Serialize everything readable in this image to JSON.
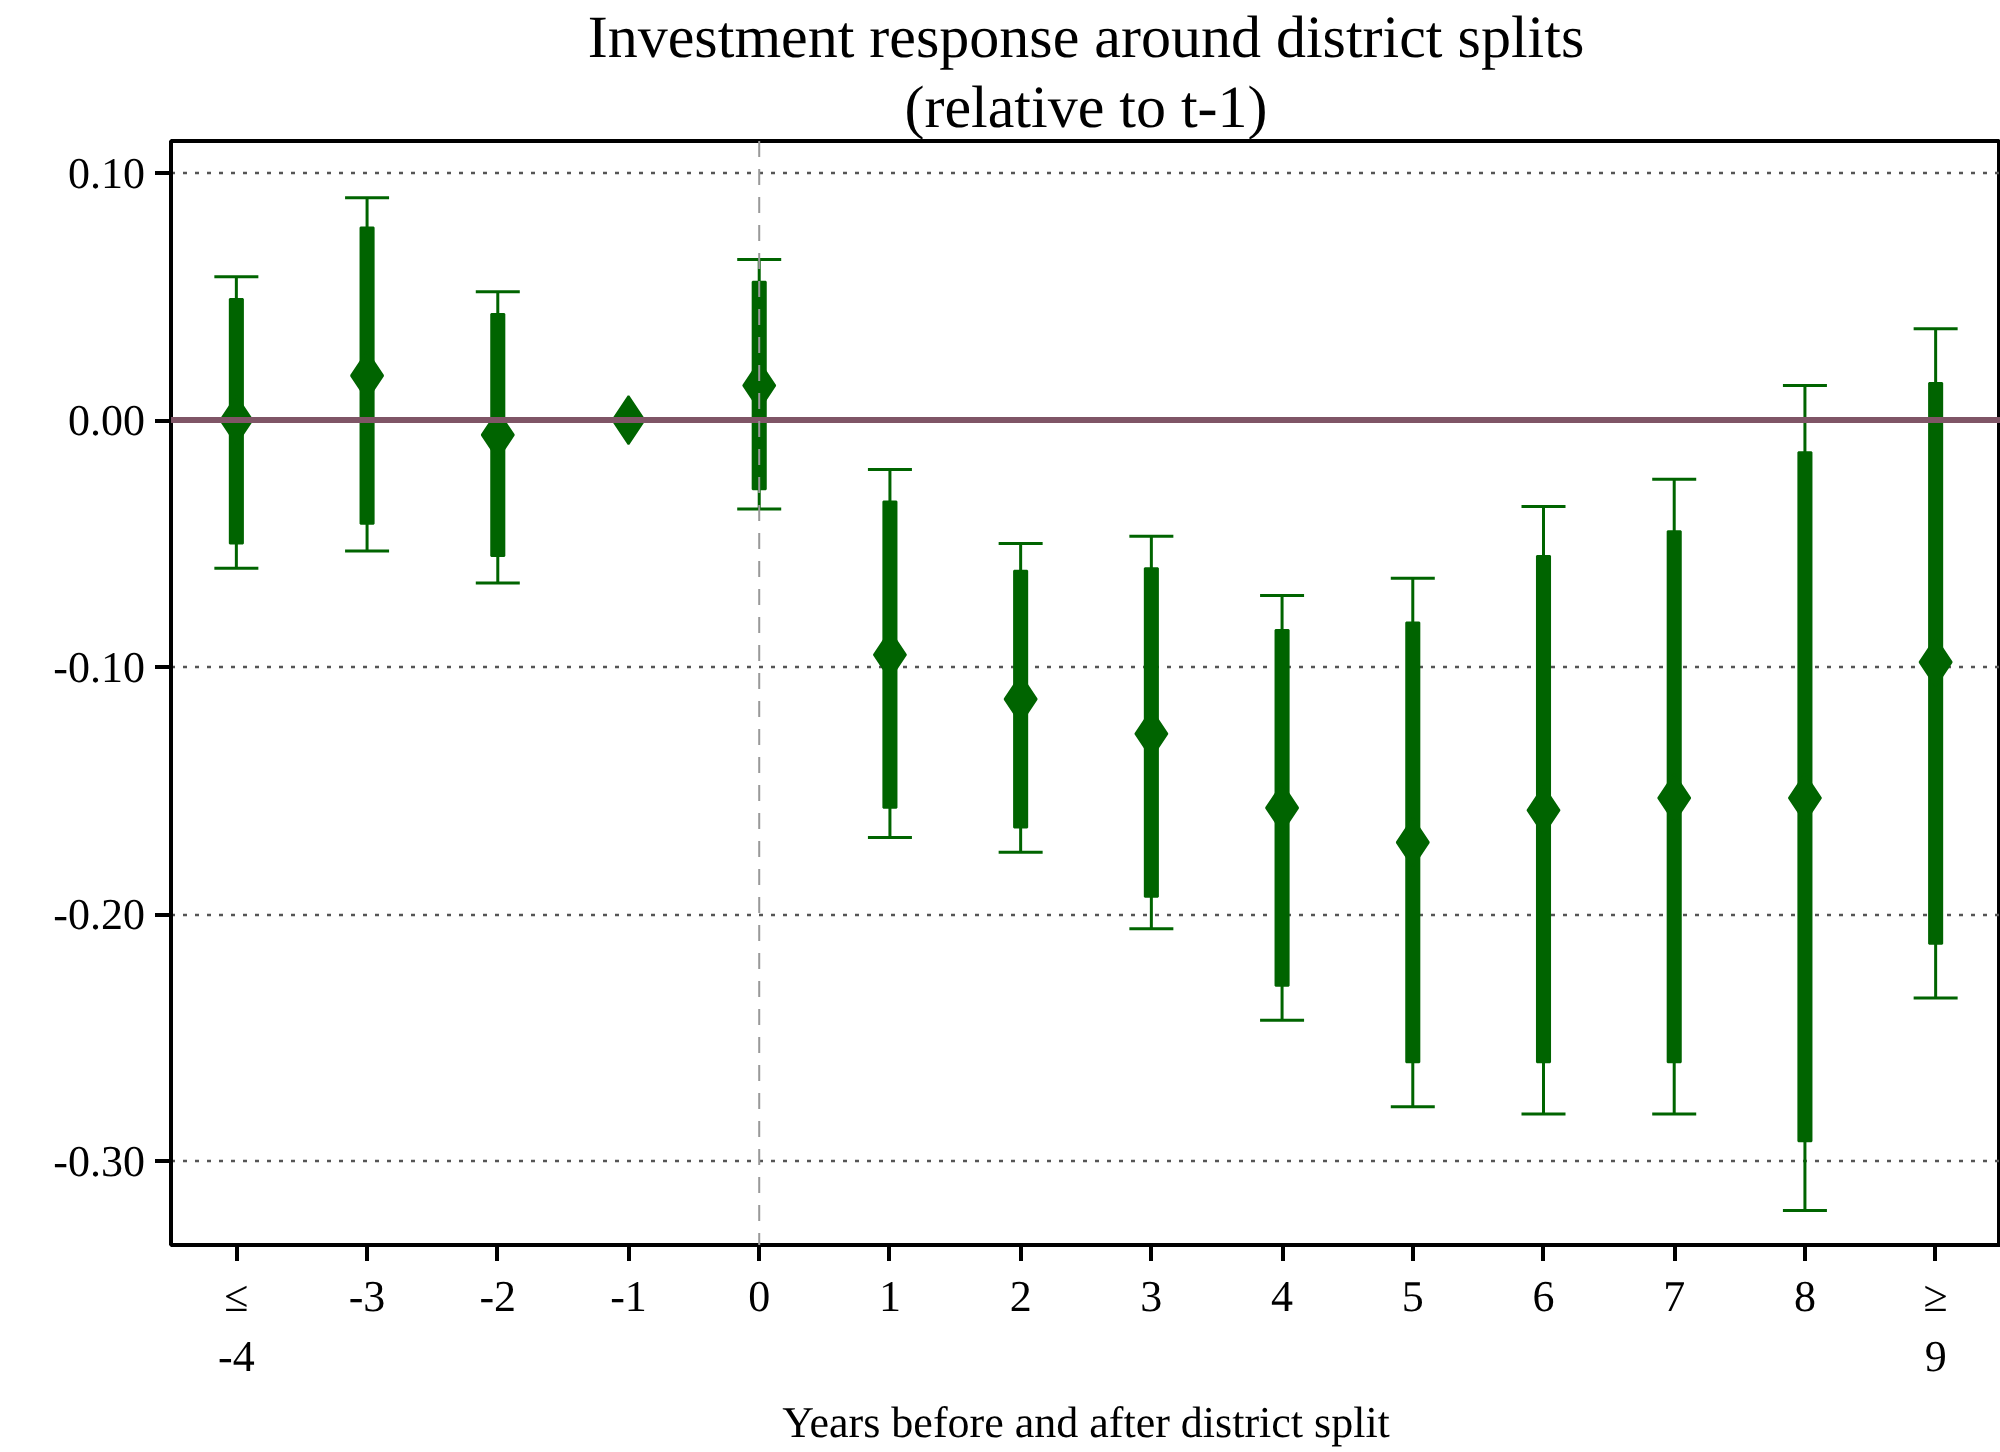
{
  "chart_data": {
    "type": "scatter",
    "title": "Investment response around district splits",
    "subtitle": "(relative to t-1)",
    "xlabel": "Years before and after district split",
    "categories": [
      "≤\n-4",
      "-3",
      "-2",
      "-1",
      "0",
      "1",
      "2",
      "3",
      "4",
      "5",
      "6",
      "7",
      "8",
      "≥\n9"
    ],
    "series": [
      {
        "type": "bar",
        "color": "#006400",
        "base": [
          -0.05,
          -0.042,
          -0.055,
          null,
          -0.028,
          -0.157,
          -0.165,
          -0.193,
          -0.229,
          -0.26,
          -0.26,
          -0.26,
          -0.292,
          -0.212
        ],
        "values": [
          0.099,
          0.12,
          0.098,
          null,
          0.084,
          0.124,
          0.104,
          0.133,
          0.144,
          0.178,
          0.205,
          0.215,
          0.279,
          0.227
        ]
      },
      {
        "color": "#006400",
        "marker": "diamond",
        "values": [
          0.0,
          0.018,
          -0.006,
          0.0,
          0.014,
          -0.095,
          -0.113,
          -0.127,
          -0.157,
          -0.171,
          -0.158,
          -0.153,
          -0.153,
          -0.098
        ],
        "errors": [
          [
            -0.06,
            0.058
          ],
          [
            -0.053,
            0.09
          ],
          [
            -0.066,
            0.052
          ],
          null,
          [
            -0.036,
            0.065
          ],
          [
            -0.169,
            -0.02
          ],
          [
            -0.175,
            -0.05
          ],
          [
            -0.206,
            -0.047
          ],
          [
            -0.243,
            -0.071
          ],
          [
            -0.278,
            -0.064
          ],
          [
            -0.281,
            -0.035
          ],
          [
            -0.281,
            -0.024
          ],
          [
            -0.32,
            0.014
          ],
          [
            -0.234,
            0.037
          ]
        ]
      }
    ],
    "ylim": [
      -0.334,
      0.113
    ],
    "yticks": [
      {
        "value": 0.1,
        "label": "0.10"
      },
      {
        "value": 0.0,
        "label": "0.00"
      },
      {
        "value": -0.1,
        "label": "-0.10"
      },
      {
        "value": -0.2,
        "label": "-0.20"
      },
      {
        "value": -0.3,
        "label": "-0.30"
      }
    ],
    "grid": "y",
    "ref_lines": [
      {
        "axis": "y",
        "value": 0,
        "color": "#7f5566",
        "line_style": "solid"
      },
      {
        "axis": "x",
        "value": "0",
        "color": "#999999",
        "line_style": "dashed"
      }
    ]
  }
}
